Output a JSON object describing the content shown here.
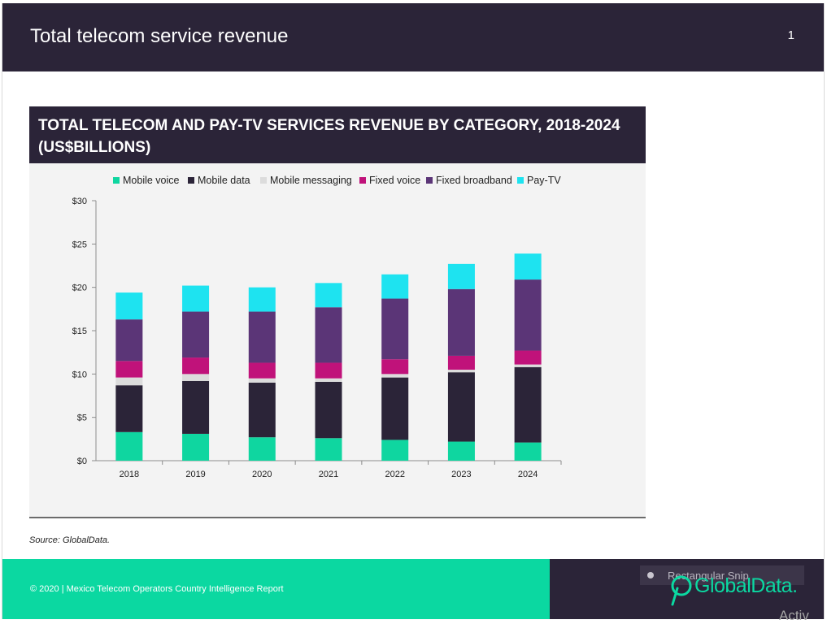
{
  "slide": {
    "title": "Total telecom service revenue",
    "page_number": "1"
  },
  "chart_title": "TOTAL TELECOM AND PAY-TV SERVICES REVENUE BY CATEGORY, 2018-2024 (US$BILLIONS)",
  "source": "Source: GlobalData.",
  "footer": {
    "text": "© 2020 | Mexico Telecom Operators Country Intelligence Report",
    "ghost_label": "Rectangular Snip",
    "brand": "GlobalData.",
    "watermark": "Activ"
  },
  "colors": {
    "header_bg": "#2b2438",
    "footer_green": "#0bd8a1",
    "chart_bg": "#f3f3f3"
  },
  "chart_data": {
    "type": "bar",
    "stacked": true,
    "title": "TOTAL TELECOM AND PAY-TV SERVICES REVENUE BY CATEGORY, 2018-2024 (US$BILLIONS)",
    "categories": [
      "2018",
      "2019",
      "2020",
      "2021",
      "2022",
      "2023",
      "2024"
    ],
    "series": [
      {
        "name": "Mobile voice",
        "color": "#0fd6a0",
        "values": [
          3.3,
          3.1,
          2.7,
          2.6,
          2.4,
          2.2,
          2.1
        ]
      },
      {
        "name": "Mobile data",
        "color": "#2b2438",
        "values": [
          5.4,
          6.1,
          6.3,
          6.5,
          7.2,
          8.0,
          8.7
        ]
      },
      {
        "name": "Mobile messaging",
        "color": "#dcdcdc",
        "values": [
          0.9,
          0.8,
          0.5,
          0.4,
          0.4,
          0.3,
          0.3
        ]
      },
      {
        "name": "Fixed voice",
        "color": "#c0127a",
        "values": [
          1.9,
          1.9,
          1.8,
          1.8,
          1.7,
          1.6,
          1.6
        ]
      },
      {
        "name": "Fixed broadband",
        "color": "#5b3577",
        "values": [
          4.8,
          5.3,
          5.9,
          6.4,
          7.0,
          7.7,
          8.2
        ]
      },
      {
        "name": "Pay-TV",
        "color": "#1ee3f0",
        "values": [
          3.1,
          3.0,
          2.8,
          2.8,
          2.8,
          2.9,
          3.0
        ]
      }
    ],
    "y_ticks": [
      "$0",
      "$5",
      "$10",
      "$15",
      "$20",
      "$25",
      "$30"
    ],
    "ylim": [
      0,
      30
    ],
    "legend_position": "top",
    "grid": false
  }
}
